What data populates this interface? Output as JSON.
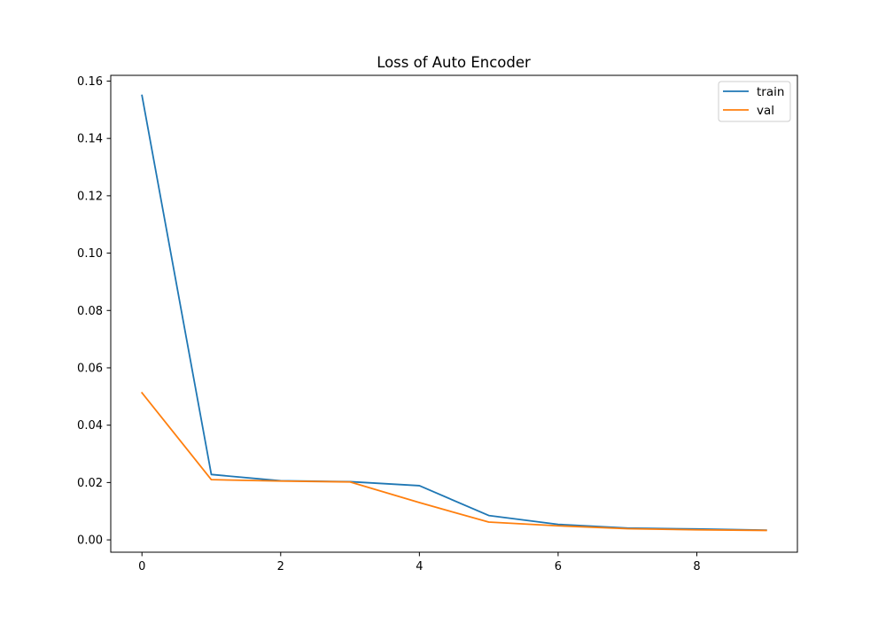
{
  "chart_data": {
    "type": "line",
    "title": "Loss of Auto Encoder",
    "xlabel": "",
    "ylabel": "",
    "x": [
      0,
      1,
      2,
      3,
      4,
      5,
      6,
      7,
      8,
      9
    ],
    "series": [
      {
        "name": "train",
        "color": "#1f77b4",
        "values": [
          0.155,
          0.0228,
          0.0206,
          0.0203,
          0.0189,
          0.0085,
          0.0054,
          0.0041,
          0.0038,
          0.0034
        ]
      },
      {
        "name": "val",
        "color": "#ff7f0e",
        "values": [
          0.0513,
          0.021,
          0.0205,
          0.0202,
          0.013,
          0.0062,
          0.0049,
          0.0039,
          0.0035,
          0.0033
        ]
      }
    ],
    "xlim": [
      -0.45,
      9.45
    ],
    "ylim": [
      -0.0043,
      0.162
    ],
    "x_ticks": [
      0,
      2,
      4,
      6,
      8
    ],
    "x_tick_labels": [
      "0",
      "2",
      "4",
      "6",
      "8"
    ],
    "y_ticks": [
      0.0,
      0.02,
      0.04,
      0.06,
      0.08,
      0.1,
      0.12,
      0.14,
      0.16
    ],
    "y_tick_labels": [
      "0.00",
      "0.02",
      "0.04",
      "0.06",
      "0.08",
      "0.10",
      "0.12",
      "0.14",
      "0.16"
    ],
    "grid": false,
    "legend_position": "top-right"
  }
}
